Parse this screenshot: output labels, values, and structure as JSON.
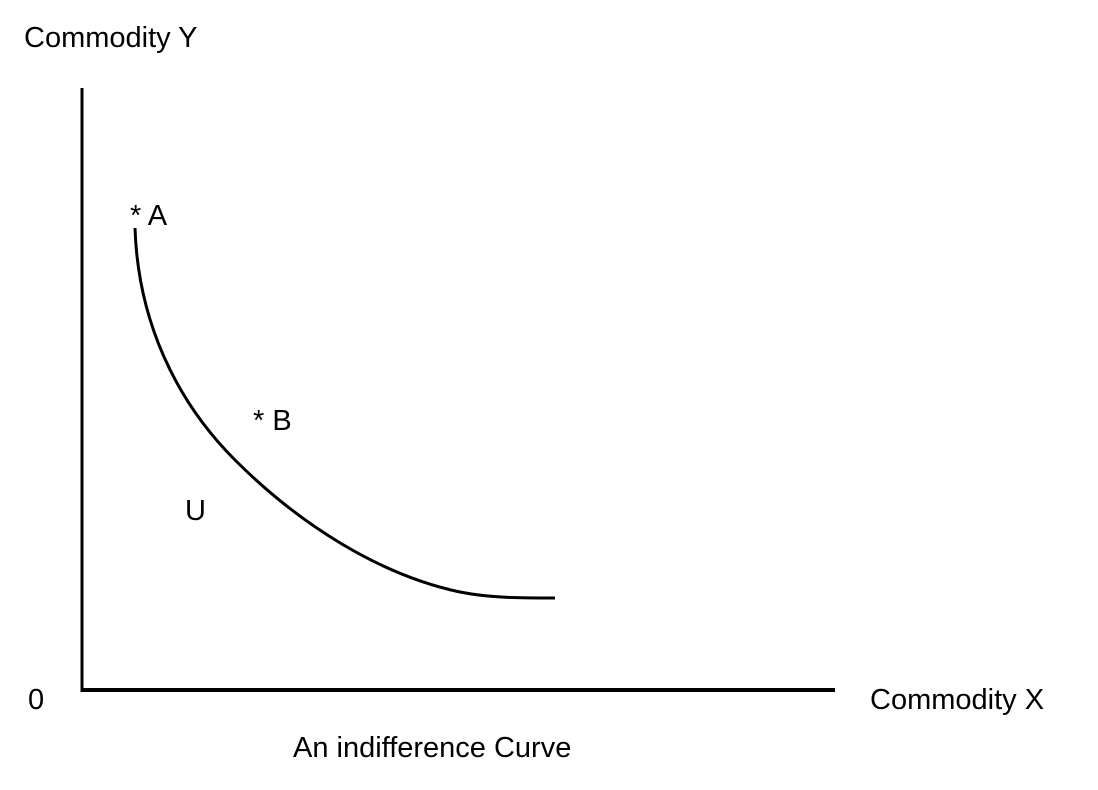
{
  "axes": {
    "y_label": "Commodity Y",
    "x_label": "Commodity X",
    "origin": "0"
  },
  "points": [
    {
      "label": "* A"
    },
    {
      "label": "* B"
    }
  ],
  "curve": {
    "label": "U"
  },
  "caption": "An indifference Curve"
}
